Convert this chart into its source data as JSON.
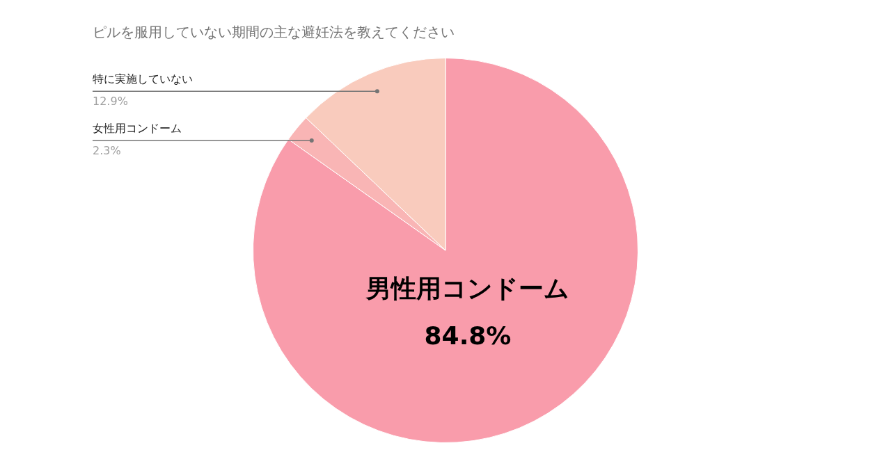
{
  "chart_data": {
    "type": "pie",
    "title": "ピルを服用していない期間の主な避妊法を教えてください",
    "categories": [
      "男性用コンドーム",
      "女性用コンドーム",
      "特に実施していない"
    ],
    "values": [
      84.8,
      2.3,
      12.9
    ],
    "value_labels": [
      "84.8%",
      "2.3%",
      "12.9%"
    ],
    "colors": [
      "#f99cab",
      "#f9b5b5",
      "#f9cbbd"
    ],
    "legend": false
  }
}
